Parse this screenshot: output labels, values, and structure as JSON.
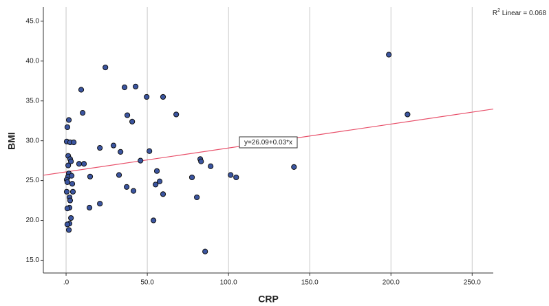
{
  "chart_data": {
    "type": "scatter",
    "x_label": "CRP",
    "y_label": "BMI",
    "x": [
      198.7,
      210.2,
      140.3,
      101.3,
      104.7,
      24.2,
      9.3,
      36,
      42.8,
      49.6,
      59.7,
      67.8,
      10.2,
      37.7,
      40.7,
      1.7,
      0.8,
      29.2,
      20.8,
      33.5,
      51.3,
      0.4,
      2.5,
      4.7,
      45.8,
      82.6,
      83.1,
      89,
      1.3,
      2.5,
      3,
      1.3,
      8,
      11,
      1.7,
      1.3,
      0.4,
      0.8,
      3.4,
      14.8,
      32.6,
      55.9,
      57.6,
      55.1,
      59.7,
      41.5,
      37.3,
      77.5,
      3.8,
      4.2,
      0.4,
      80.5,
      20.8,
      2.1,
      2.5,
      14.4,
      2.1,
      0.8,
      3,
      53.8,
      2.1,
      0.8,
      1.7,
      85.6
    ],
    "values": [
      40.8,
      33.3,
      26.7,
      25.7,
      25.4,
      39.2,
      36.4,
      36.7,
      36.8,
      35.5,
      35.5,
      33.3,
      33.5,
      33.2,
      32.4,
      32.6,
      31.7,
      29.4,
      29.1,
      28.6,
      28.7,
      29.9,
      29.8,
      29.8,
      27.5,
      27.7,
      27.4,
      26.8,
      28.1,
      27.7,
      27.4,
      26.9,
      27.1,
      27.1,
      25.9,
      25.5,
      25.1,
      24.8,
      25.6,
      25.5,
      25.7,
      26.2,
      24.9,
      24.5,
      23.3,
      23.7,
      24.2,
      25.4,
      24.6,
      23.6,
      23.6,
      22.9,
      22.1,
      22.9,
      22.5,
      21.6,
      21.6,
      21.5,
      20.3,
      20.0,
      19.6,
      19.5,
      18.8,
      16.1
    ],
    "color": "#3b55a0",
    "xlim": [
      -14,
      263
    ],
    "ylim": [
      13.4,
      46.8
    ],
    "xticks": [
      {
        "value": 0,
        "label": ".0"
      },
      {
        "value": 50,
        "label": "50.0"
      },
      {
        "value": 100,
        "label": "100.0"
      },
      {
        "value": 150,
        "label": "150.0"
      },
      {
        "value": 200,
        "label": "200.0"
      },
      {
        "value": 250,
        "label": "250.0"
      }
    ],
    "yticks": [
      {
        "value": 15,
        "label": "15.0"
      },
      {
        "value": 20,
        "label": "20.0"
      },
      {
        "value": 25,
        "label": "25.0"
      },
      {
        "value": 30,
        "label": "30.0"
      },
      {
        "value": 35,
        "label": "35.0"
      },
      {
        "value": 40,
        "label": "40.0"
      },
      {
        "value": 45,
        "label": "45.0"
      }
    ],
    "grid": "x",
    "fit": {
      "intercept": 26.09,
      "slope": 0.03,
      "label": "y=26.09+0.03*x",
      "color": "#e8506a"
    },
    "r2_label": {
      "prefix": "R",
      "sup": "2",
      "suffix": " Linear = 0.068"
    }
  }
}
